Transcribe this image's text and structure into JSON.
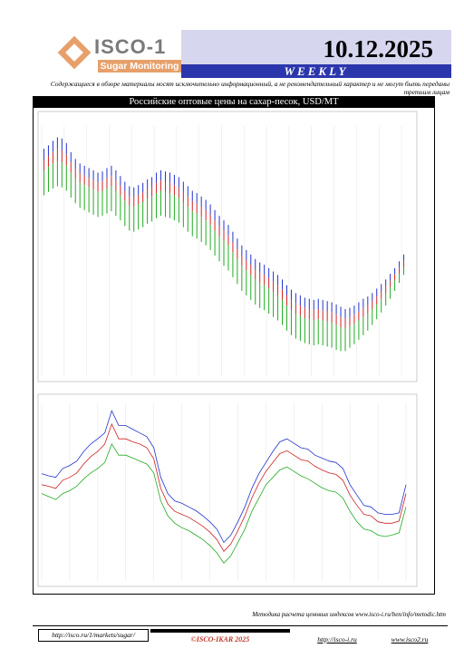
{
  "header": {
    "logo_title": "ISCO-1",
    "logo_subtitle": "Sugar Monitoring",
    "date": "10.12.2025",
    "weekly": "WEEKLY",
    "disclaimer": "Содержащиеся в обзоре материалы носят исключительно информационный, а не рекомендательный характер и не могут быть переданы третьим лицам"
  },
  "colors": {
    "date_bg": "#d6d6ee",
    "weekly_bg": "#2c36ac",
    "logo_accent": "#e7a06a",
    "series_max": "#2233cc",
    "series_avg": "#cc2222",
    "series_min": "#22aa22"
  },
  "chart_title": "Российские оптовые цены на сахар-песок, USD/MT",
  "chart_data": [
    {
      "type": "bar",
      "subtitle": "",
      "series": [
        {
          "name": "",
          "color_key": "series_max",
          "values": [
            705,
            708,
            712,
            715,
            714,
            710,
            702,
            696,
            692,
            690,
            688,
            686,
            684,
            685,
            688,
            690,
            686,
            681,
            676,
            672,
            671,
            673,
            675,
            678,
            680,
            684,
            686,
            685,
            684,
            682,
            680,
            676,
            672,
            668,
            666,
            663,
            660,
            656,
            651,
            646,
            642,
            638,
            632,
            626,
            620,
            616,
            612,
            608,
            605,
            603,
            600,
            597,
            594,
            590,
            585,
            581,
            578,
            576,
            574,
            573,
            572,
            573,
            572,
            571,
            570,
            568,
            566,
            564,
            565,
            567,
            570,
            573,
            575,
            578,
            582,
            586,
            590,
            595,
            600,
            606,
            612
          ]
        },
        {
          "name": "",
          "color_key": "series_avg",
          "values": [
            686,
            689,
            692,
            694,
            693,
            690,
            684,
            679,
            675,
            673,
            671,
            669,
            667,
            668,
            670,
            672,
            668,
            664,
            659,
            655,
            654,
            656,
            658,
            661,
            663,
            666,
            668,
            667,
            666,
            664,
            662,
            658,
            654,
            650,
            648,
            645,
            642,
            638,
            633,
            628,
            624,
            620,
            614,
            608,
            602,
            598,
            594,
            590,
            587,
            585,
            582,
            579,
            576,
            572,
            567,
            563,
            560,
            558,
            556,
            555,
            554,
            555,
            554,
            553,
            552,
            550,
            548,
            547,
            549,
            551,
            554,
            557,
            560,
            564,
            568,
            573,
            578,
            583,
            589,
            595,
            601
          ]
        },
        {
          "name": "",
          "color_key": "series_min",
          "values": [
            664,
            667,
            670,
            672,
            671,
            668,
            662,
            657,
            653,
            651,
            649,
            647,
            645,
            646,
            648,
            650,
            646,
            642,
            637,
            633,
            632,
            634,
            636,
            639,
            641,
            644,
            646,
            645,
            644,
            642,
            640,
            636,
            632,
            628,
            626,
            623,
            620,
            616,
            611,
            606,
            602,
            598,
            592,
            586,
            580,
            576,
            572,
            568,
            565,
            563,
            560,
            557,
            554,
            550,
            545,
            541,
            538,
            536,
            534,
            533,
            532,
            533,
            532,
            531,
            530,
            528,
            527,
            527,
            530,
            533,
            537,
            541,
            545,
            550,
            555,
            561,
            567,
            573,
            580,
            587,
            594
          ]
        }
      ],
      "ylim": [
        505,
        725
      ]
    },
    {
      "type": "line",
      "subtitle": "",
      "series": [
        {
          "name": "",
          "color_key": "series_max",
          "values": [
            705,
            702,
            700,
            712,
            716,
            722,
            735,
            745,
            752,
            760,
            790,
            770,
            770,
            765,
            760,
            755,
            740,
            700,
            678,
            668,
            665,
            660,
            655,
            648,
            640,
            630,
            612,
            622,
            640,
            660,
            685,
            705,
            720,
            735,
            748,
            752,
            746,
            740,
            738,
            730,
            726,
            722,
            720,
            712,
            690,
            676,
            662,
            660,
            652,
            650,
            650,
            652,
            690
          ]
        },
        {
          "name": "",
          "color_key": "series_avg",
          "values": [
            690,
            688,
            685,
            696,
            700,
            706,
            718,
            728,
            735,
            745,
            772,
            752,
            752,
            748,
            745,
            740,
            725,
            685,
            664,
            654,
            650,
            646,
            640,
            634,
            626,
            616,
            600,
            610,
            628,
            648,
            672,
            692,
            708,
            720,
            732,
            736,
            730,
            724,
            722,
            715,
            710,
            706,
            704,
            696,
            676,
            662,
            650,
            648,
            640,
            638,
            638,
            641,
            678
          ]
        },
        {
          "name": "",
          "color_key": "series_min",
          "values": [
            678,
            674,
            670,
            678,
            682,
            688,
            698,
            706,
            712,
            720,
            745,
            730,
            730,
            726,
            722,
            718,
            706,
            668,
            648,
            638,
            632,
            628,
            622,
            616,
            608,
            598,
            584,
            594,
            612,
            630,
            654,
            672,
            690,
            700,
            710,
            714,
            708,
            702,
            698,
            692,
            686,
            682,
            680,
            672,
            654,
            640,
            630,
            628,
            622,
            620,
            622,
            625,
            660
          ]
        }
      ],
      "ylim": [
        560,
        800
      ]
    }
  ],
  "footer": {
    "method_note": "Методика расчета ценовых индексов www.isco-i.ru/ben/info/metodic.htm",
    "link1": "http://isco.ru/1/markets/sugar/",
    "copyright": "©ISCO-IKAR 2025",
    "link2": "http://isco-i.ru",
    "link3": "www.isco2.ru"
  }
}
